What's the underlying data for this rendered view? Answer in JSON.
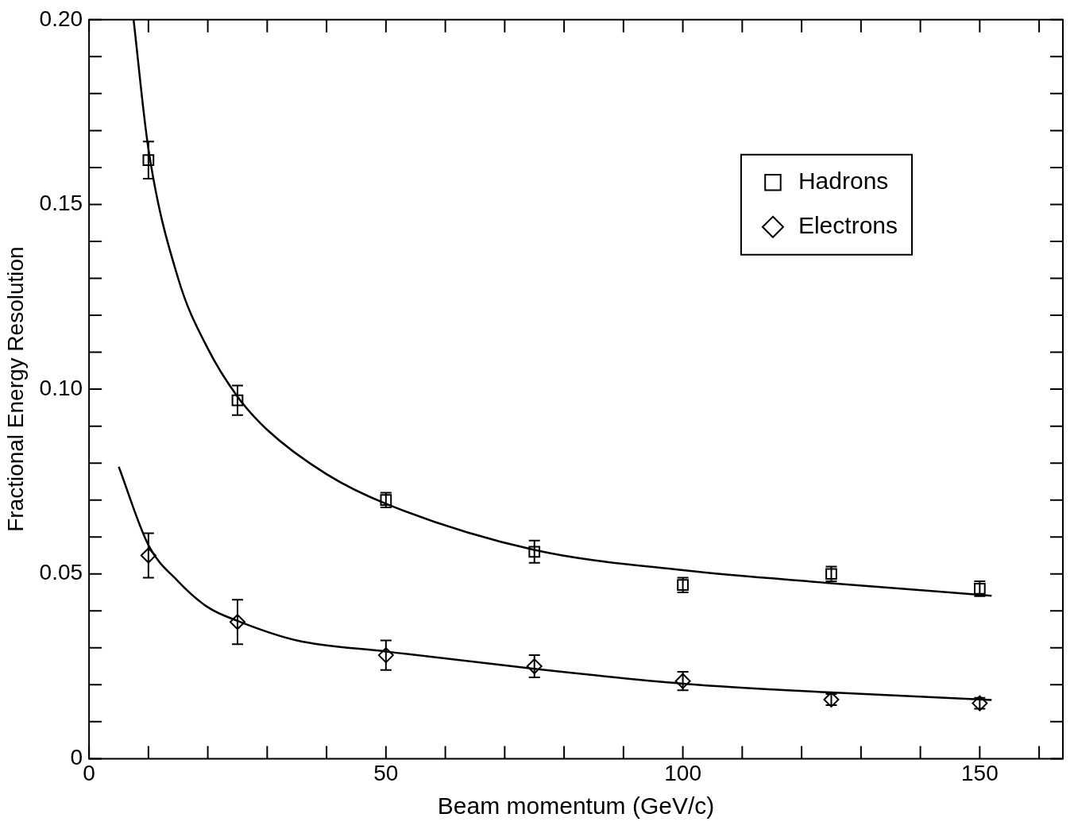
{
  "chart_data": {
    "type": "scatter",
    "xlabel": "Beam momentum (GeV/c)",
    "ylabel": "Fractional Energy Resolution",
    "xlim": [
      0,
      164
    ],
    "ylim": [
      0,
      0.2
    ],
    "xticks": [
      0,
      {
        "value": 10,
        "label": null
      },
      {
        "value": 20,
        "label": null
      },
      {
        "value": 30,
        "label": null
      },
      {
        "value": 40,
        "label": null
      },
      50,
      {
        "value": 60,
        "label": null
      },
      {
        "value": 70,
        "label": null
      },
      {
        "value": 80,
        "label": null
      },
      {
        "value": 90,
        "label": null
      },
      100,
      {
        "value": 110,
        "label": null
      },
      {
        "value": 120,
        "label": null
      },
      {
        "value": 130,
        "label": null
      },
      {
        "value": 140,
        "label": null
      },
      150,
      {
        "value": 160,
        "label": null
      }
    ],
    "yticks": [
      0,
      {
        "value": 0.01,
        "label": null
      },
      {
        "value": 0.02,
        "label": null
      },
      {
        "value": 0.03,
        "label": null
      },
      {
        "value": 0.04,
        "label": null
      },
      0.05,
      {
        "value": 0.06,
        "label": null
      },
      {
        "value": 0.07,
        "label": null
      },
      {
        "value": 0.08,
        "label": null
      },
      {
        "value": 0.09,
        "label": null
      },
      {
        "value": 0.1,
        "label": "0.10"
      },
      {
        "value": 0.11,
        "label": null
      },
      {
        "value": 0.12,
        "label": null
      },
      {
        "value": 0.13,
        "label": null
      },
      {
        "value": 0.14,
        "label": null
      },
      0.15,
      {
        "value": 0.16,
        "label": null
      },
      {
        "value": 0.17,
        "label": null
      },
      {
        "value": 0.18,
        "label": null
      },
      {
        "value": 0.19,
        "label": null
      },
      {
        "value": 0.2,
        "label": "0.20"
      }
    ],
    "grid": false,
    "legend": "top right",
    "series": [
      {
        "name": "Hadrons",
        "type": "scatter",
        "marker": "square",
        "color": "#000000",
        "x": [
          10,
          25,
          50,
          75,
          100,
          125,
          150
        ],
        "values": [
          0.162,
          0.097,
          0.07,
          0.056,
          0.047,
          0.05,
          0.046
        ],
        "errors": [
          0.005,
          0.004,
          0.002,
          0.003,
          0.002,
          0.002,
          0.002
        ]
      },
      {
        "name": "Electrons",
        "type": "scatter",
        "marker": "diamond",
        "color": "#000000",
        "x": [
          10,
          25,
          50,
          75,
          100,
          125,
          150
        ],
        "values": [
          0.055,
          0.037,
          0.028,
          0.025,
          0.021,
          0.016,
          0.015
        ],
        "errors": [
          0.006,
          0.006,
          0.004,
          0.003,
          0.0025,
          0.0015,
          0.0015
        ]
      },
      {
        "type": "line",
        "marker": "none",
        "color": "#000000",
        "x": [
          7.5,
          10,
          15,
          20,
          25,
          30,
          40,
          50,
          75,
          100,
          125,
          152
        ],
        "values": [
          0.2,
          0.165,
          0.13,
          0.111,
          0.098,
          0.089,
          0.077,
          0.069,
          0.0565,
          0.051,
          0.0475,
          0.0441
        ]
      },
      {
        "type": "line",
        "marker": "none",
        "color": "#000000",
        "x": [
          5,
          10,
          15,
          20,
          25,
          35,
          50,
          75,
          100,
          125,
          152
        ],
        "values": [
          0.079,
          0.0578,
          0.048,
          0.041,
          0.0373,
          0.032,
          0.029,
          0.0243,
          0.0203,
          0.0179,
          0.0159
        ]
      }
    ]
  }
}
